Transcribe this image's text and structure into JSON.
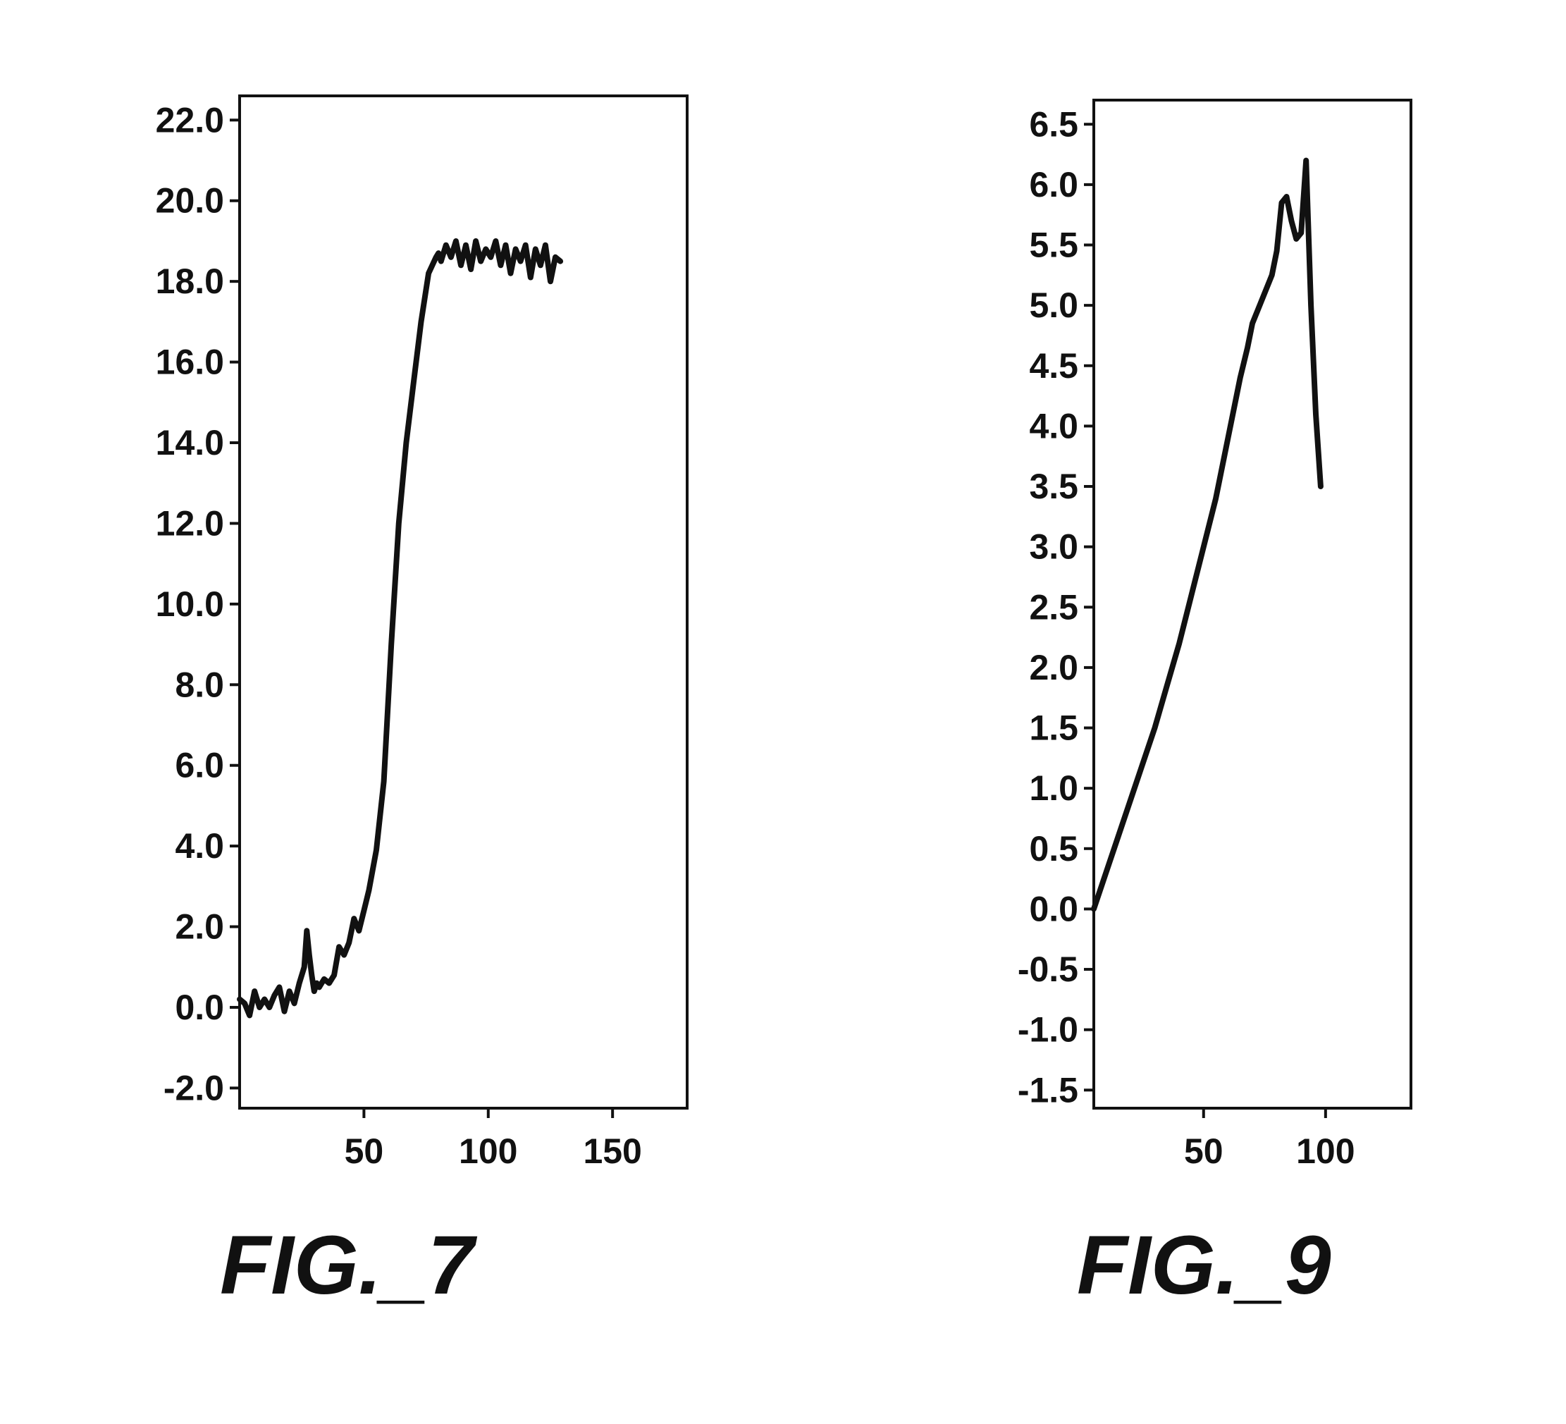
{
  "chart_data": [
    {
      "type": "line",
      "title": "",
      "caption": "FIG._7",
      "xlabel": "",
      "ylabel": "",
      "xlim": [
        0,
        180
      ],
      "ylim": [
        -2.5,
        22.6
      ],
      "grid": false,
      "xticks": [
        50,
        100,
        150
      ],
      "xtick_labels": [
        "50",
        "100",
        "150"
      ],
      "yticks": [
        22,
        20,
        18,
        16,
        14,
        12,
        10,
        8,
        6,
        4,
        2,
        0,
        -2
      ],
      "ytick_labels": [
        "22.0",
        "20.0",
        "18.0",
        "16.0",
        "14.0",
        "12.0",
        "10.0",
        "8.0",
        "6.0",
        "4.0",
        "2.0",
        "0.0",
        "-2.0"
      ],
      "series": [
        {
          "x": [
            0,
            2,
            4,
            6,
            8,
            10,
            12,
            14,
            16,
            18,
            20,
            22,
            24,
            26,
            27,
            28,
            29,
            30,
            31,
            32,
            34,
            36,
            38,
            40,
            42,
            44,
            46,
            48,
            50,
            52,
            55,
            58,
            61,
            64,
            67,
            70,
            73,
            76,
            79,
            80,
            81,
            83,
            85,
            87,
            89,
            91,
            93,
            95,
            97,
            99,
            101,
            103,
            105,
            107,
            109,
            111,
            113,
            115,
            117,
            119,
            121,
            123,
            125,
            127,
            129
          ],
          "y": [
            0.2,
            0.1,
            -0.2,
            0.4,
            0.0,
            0.2,
            0.0,
            0.3,
            0.5,
            -0.1,
            0.4,
            0.1,
            0.6,
            1.0,
            1.9,
            1.3,
            0.8,
            0.4,
            0.6,
            0.5,
            0.7,
            0.6,
            0.8,
            1.5,
            1.3,
            1.6,
            2.2,
            1.9,
            2.4,
            2.9,
            3.9,
            5.6,
            9.0,
            12.0,
            14.0,
            15.5,
            17.0,
            18.2,
            18.6,
            18.7,
            18.5,
            18.9,
            18.6,
            19.0,
            18.4,
            18.9,
            18.3,
            19.0,
            18.5,
            18.8,
            18.6,
            19.0,
            18.4,
            18.9,
            18.2,
            18.8,
            18.5,
            18.9,
            18.1,
            18.8,
            18.4,
            18.9,
            18.0,
            18.6,
            18.5
          ]
        }
      ]
    },
    {
      "type": "line",
      "title": "",
      "caption": "FIG._9",
      "xlabel": "",
      "ylabel": "",
      "xlim": [
        5,
        135
      ],
      "ylim": [
        -1.65,
        6.7
      ],
      "grid": false,
      "xticks": [
        50,
        100
      ],
      "xtick_labels": [
        "50",
        "100"
      ],
      "yticks": [
        6.5,
        6.0,
        5.5,
        5.0,
        4.5,
        4.0,
        3.5,
        3.0,
        2.5,
        2.0,
        1.5,
        1.0,
        0.5,
        0.0,
        -0.5,
        -1.0,
        -1.5
      ],
      "ytick_labels": [
        "6.5",
        "6.0",
        "5.5",
        "5.0",
        "4.5",
        "4.0",
        "3.5",
        "3.0",
        "2.5",
        "2.0",
        "1.5",
        "1.0",
        "0.5",
        "0.0",
        "-0.5",
        "-1.0",
        "-1.5"
      ],
      "series": [
        {
          "x": [
            5,
            10,
            15,
            20,
            25,
            30,
            35,
            40,
            45,
            50,
            55,
            60,
            65,
            68,
            70,
            72,
            75,
            78,
            80,
            82,
            84,
            86,
            88,
            90,
            92,
            94,
            96,
            98
          ],
          "y": [
            0.0,
            0.3,
            0.6,
            0.9,
            1.2,
            1.5,
            1.85,
            2.2,
            2.6,
            3.0,
            3.4,
            3.9,
            4.4,
            4.65,
            4.85,
            4.95,
            5.1,
            5.25,
            5.45,
            5.85,
            5.9,
            5.7,
            5.55,
            5.6,
            6.2,
            5.0,
            4.1,
            3.5
          ]
        }
      ]
    }
  ]
}
